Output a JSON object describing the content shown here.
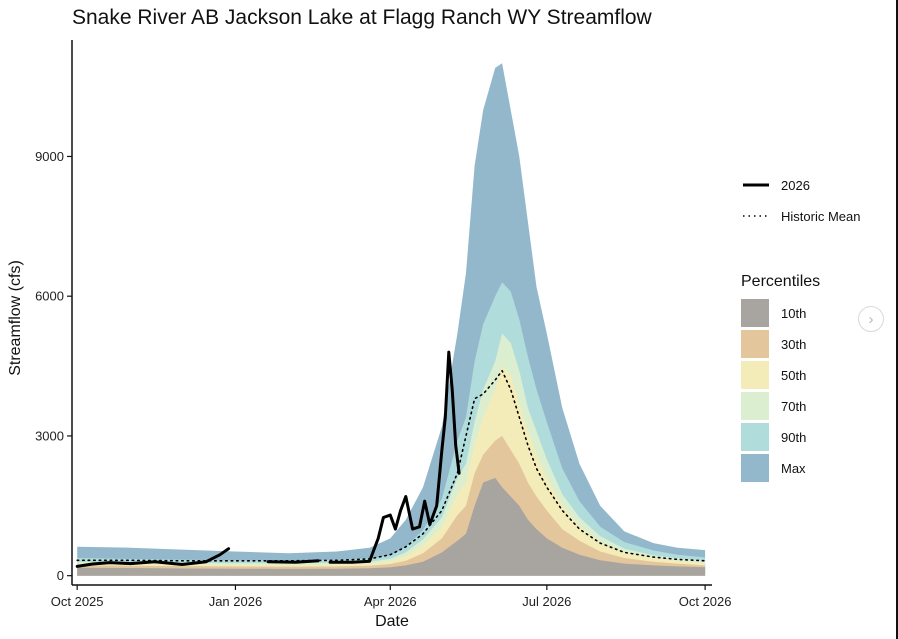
{
  "chart_data": {
    "type": "area",
    "title": "Snake River AB Jackson Lake at Flagg Ranch WY Streamflow",
    "xlabel": "Date",
    "ylabel": "Streamflow (cfs)",
    "x_ticks": [
      "Oct 2025",
      "Jan 2026",
      "Apr 2026",
      "Jul 2026",
      "Oct 2026"
    ],
    "x_tick_dates": [
      "2025-10-01",
      "2026-01-01",
      "2026-04-01",
      "2026-07-01",
      "2026-10-01"
    ],
    "y_ticks": [
      0,
      3000,
      6000,
      9000
    ],
    "ylim": [
      -200,
      11500
    ],
    "xlim": [
      "2025-09-28",
      "2026-10-05"
    ],
    "legend_placement": "right",
    "legend_title": "Percentiles",
    "grid": false,
    "band_dates": [
      "2025-10-01",
      "2025-11-01",
      "2025-12-01",
      "2026-01-01",
      "2026-02-01",
      "2026-03-01",
      "2026-03-20",
      "2026-04-01",
      "2026-04-10",
      "2026-04-20",
      "2026-05-01",
      "2026-05-10",
      "2026-05-15",
      "2026-05-20",
      "2026-05-25",
      "2026-06-01",
      "2026-06-05",
      "2026-06-10",
      "2026-06-15",
      "2026-06-20",
      "2026-06-25",
      "2026-07-01",
      "2026-07-10",
      "2026-07-20",
      "2026-08-01",
      "2026-08-15",
      "2026-09-01",
      "2026-09-15",
      "2026-10-01"
    ],
    "percentile_bands": [
      {
        "name": "10th",
        "color": "#a8a4a0",
        "values": [
          170,
          165,
          155,
          150,
          145,
          150,
          160,
          180,
          220,
          300,
          500,
          750,
          900,
          1500,
          2000,
          2100,
          1900,
          1700,
          1500,
          1200,
          1000,
          800,
          600,
          450,
          330,
          260,
          220,
          200,
          180
        ]
      },
      {
        "name": "30th",
        "color": "#e3c69c",
        "values": [
          220,
          215,
          205,
          200,
          195,
          200,
          215,
          250,
          320,
          480,
          800,
          1300,
          1500,
          2200,
          2600,
          2900,
          3000,
          2700,
          2400,
          2000,
          1700,
          1400,
          1000,
          750,
          520,
          380,
          300,
          260,
          220
        ]
      },
      {
        "name": "50th",
        "color": "#f4ecb8",
        "values": [
          260,
          250,
          240,
          235,
          230,
          240,
          260,
          310,
          420,
          650,
          1050,
          1750,
          2000,
          2800,
          3400,
          4000,
          4500,
          4300,
          3700,
          3100,
          2600,
          2100,
          1500,
          1050,
          720,
          500,
          380,
          320,
          270
        ]
      },
      {
        "name": "70th",
        "color": "#dbeed0",
        "values": [
          300,
          290,
          275,
          270,
          265,
          275,
          300,
          360,
          500,
          780,
          1250,
          2100,
          2400,
          3300,
          4000,
          4600,
          5200,
          5000,
          4400,
          3600,
          3100,
          2500,
          1750,
          1250,
          850,
          580,
          440,
          370,
          320
        ]
      },
      {
        "name": "90th",
        "color": "#b1dcdc",
        "values": [
          380,
          360,
          340,
          330,
          320,
          340,
          370,
          440,
          620,
          980,
          1650,
          2900,
          3400,
          4600,
          5400,
          6000,
          6300,
          6100,
          5500,
          4700,
          4000,
          3300,
          2300,
          1600,
          1050,
          720,
          540,
          450,
          390
        ]
      },
      {
        "name": "Max",
        "color": "#93b8cc",
        "values": [
          620,
          600,
          560,
          520,
          480,
          520,
          600,
          800,
          1200,
          1900,
          3200,
          5200,
          6500,
          8800,
          10000,
          10900,
          11000,
          10000,
          9000,
          7600,
          6200,
          5200,
          3600,
          2400,
          1500,
          950,
          700,
          600,
          550
        ]
      }
    ],
    "series": [
      {
        "name": "2026",
        "style": "solid",
        "x": [
          "2025-10-01",
          "2025-10-10",
          "2025-10-20",
          "2025-11-01",
          "2025-11-15",
          "2025-12-01",
          "2025-12-15",
          "2025-12-23",
          "2025-12-28"
        ],
        "y": [
          200,
          250,
          280,
          260,
          300,
          240,
          300,
          450,
          580
        ]
      },
      {
        "name": "2026",
        "style": "solid",
        "x": [
          "2026-01-20",
          "2026-02-05",
          "2026-02-18"
        ],
        "y": [
          300,
          290,
          320
        ]
      },
      {
        "name": "2026",
        "style": "solid",
        "x": [
          "2026-02-25",
          "2026-03-10",
          "2026-03-20",
          "2026-03-25",
          "2026-03-28",
          "2026-04-01",
          "2026-04-04",
          "2026-04-07",
          "2026-04-10",
          "2026-04-14",
          "2026-04-18",
          "2026-04-21",
          "2026-04-24",
          "2026-04-28",
          "2026-05-01",
          "2026-05-03",
          "2026-05-05",
          "2026-05-07",
          "2026-05-09",
          "2026-05-10",
          "2026-05-11"
        ],
        "y": [
          290,
          290,
          310,
          800,
          1250,
          1300,
          1000,
          1400,
          1700,
          1000,
          1050,
          1600,
          1100,
          1500,
          2700,
          3400,
          4800,
          4000,
          2800,
          2500,
          2200
        ]
      },
      {
        "name": "Historic Mean",
        "style": "dotted",
        "x": [
          "2025-10-01",
          "2025-11-01",
          "2025-12-01",
          "2026-01-01",
          "2026-02-01",
          "2026-03-01",
          "2026-03-20",
          "2026-04-01",
          "2026-04-10",
          "2026-04-20",
          "2026-05-01",
          "2026-05-10",
          "2026-05-15",
          "2026-05-20",
          "2026-05-25",
          "2026-06-01",
          "2026-06-05",
          "2026-06-10",
          "2026-06-15",
          "2026-06-20",
          "2026-06-25",
          "2026-07-01",
          "2026-07-10",
          "2026-07-20",
          "2026-08-01",
          "2026-08-15",
          "2026-09-01",
          "2026-09-15",
          "2026-10-01"
        ],
        "y": [
          330,
          330,
          320,
          320,
          320,
          330,
          360,
          450,
          620,
          900,
          1400,
          2200,
          3000,
          3800,
          3900,
          4200,
          4400,
          4000,
          3400,
          2800,
          2300,
          1900,
          1400,
          1000,
          700,
          500,
          400,
          350,
          320
        ]
      }
    ]
  },
  "legend": {
    "line_entries": [
      {
        "label": "2026",
        "style": "solid"
      },
      {
        "label": "Historic Mean",
        "style": "dotted"
      }
    ]
  },
  "ui": {
    "next_icon": "chevron-right-icon",
    "next_glyph": "›"
  }
}
